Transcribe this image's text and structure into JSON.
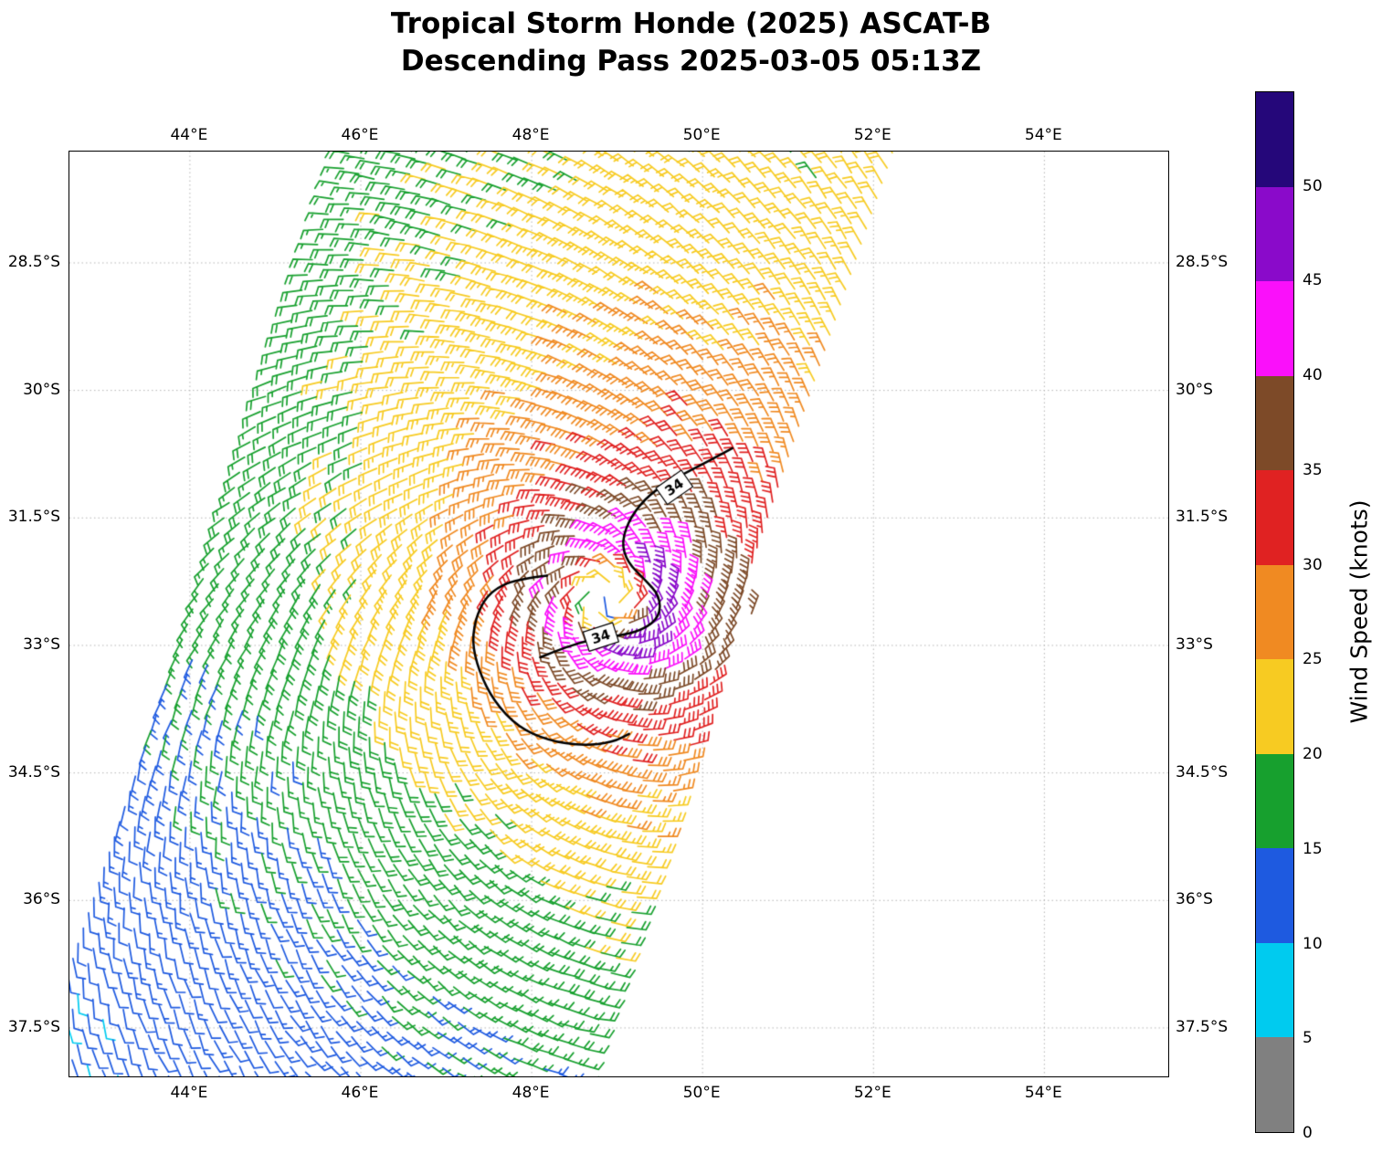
{
  "title": {
    "line1": "Tropical Storm Honde (2025) ASCAT-B",
    "line2": "Descending Pass 2025-03-05 05:13Z"
  },
  "axes": {
    "lon_ticks": {
      "values": [
        44,
        46,
        48,
        50,
        52,
        54
      ],
      "labels": [
        "44°E",
        "46°E",
        "48°E",
        "50°E",
        "52°E",
        "54°E"
      ]
    },
    "lat_ticks": {
      "values": [
        -28.5,
        -30,
        -31.5,
        -33,
        -34.5,
        -36,
        -37.5
      ],
      "labels": [
        "28.5°S",
        "30°S",
        "31.5°S",
        "33°S",
        "34.5°S",
        "36°S",
        "37.5°S"
      ]
    }
  },
  "colorbar": {
    "label": "Wind Speed (knots)",
    "ticks": [
      0,
      5,
      10,
      15,
      20,
      25,
      30,
      35,
      40,
      45,
      50
    ]
  },
  "chart_data": {
    "type": "wind_barb_map",
    "title": "Tropical Storm Honde (2025) ASCAT-B",
    "subtitle": "Descending Pass 2025-03-05 05:13Z",
    "satellite": "ASCAT-B",
    "pass_type": "Descending",
    "datetime_utc": "2025-03-05 05:13Z",
    "colorbar_label": "Wind Speed (knots)",
    "xlim": [
      42.59,
      55.45
    ],
    "ylim": [
      -38.07,
      -27.19
    ],
    "lon_gridlines": [
      44,
      46,
      48,
      50,
      52,
      54
    ],
    "lat_gridlines": [
      -28.5,
      -30,
      -31.5,
      -33,
      -34.5,
      -36,
      -37.5
    ],
    "wind_levels_knots": [
      0,
      5,
      10,
      15,
      20,
      25,
      30,
      35,
      40,
      45,
      50
    ],
    "wind_colors": [
      "#808080",
      "#00CBEF",
      "#1E5AE0",
      "#17A02E",
      "#F7CB22",
      "#F08A22",
      "#E02222",
      "#7D4A28",
      "#FA10FA",
      "#8A0ACA",
      "#25077A"
    ],
    "storm": {
      "name": "Honde",
      "year": 2025,
      "center_lon": 48.9,
      "center_lat": -32.4,
      "vmax_kt": 44,
      "rmax_deg": 0.55,
      "eye_speed_kt": 15,
      "asym_amp": 0.13,
      "inflow_deg": 22
    },
    "background_wind": [
      2.5,
      -5
    ],
    "swath": {
      "top_center_lon": 49.05,
      "track_angle_deg": 18.9,
      "half_width_deg": 3.2,
      "step_deg": 0.188
    },
    "contour_level_knots": 34,
    "contours": [
      {
        "label": "34",
        "points": [
          [
            50.35,
            -30.68
          ],
          [
            50.02,
            -30.86
          ],
          [
            49.68,
            -31.03
          ],
          [
            49.38,
            -31.22
          ],
          [
            49.16,
            -31.48
          ],
          [
            49.05,
            -31.78
          ],
          [
            49.12,
            -32.02
          ],
          [
            49.32,
            -32.22
          ],
          [
            49.5,
            -32.42
          ],
          [
            49.5,
            -32.66
          ],
          [
            49.3,
            -32.82
          ],
          [
            49.0,
            -32.89
          ],
          [
            48.7,
            -32.93
          ],
          [
            48.4,
            -33.02
          ],
          [
            48.1,
            -33.14
          ]
        ],
        "labels": [
          {
            "lon": 49.67,
            "lat": -31.14,
            "angle": -35
          },
          {
            "lon": 48.81,
            "lat": -32.9,
            "angle": -18
          }
        ]
      },
      {
        "label": "34",
        "points": [
          [
            48.18,
            -32.18
          ],
          [
            47.82,
            -32.22
          ],
          [
            47.52,
            -32.36
          ],
          [
            47.36,
            -32.62
          ],
          [
            47.3,
            -32.95
          ],
          [
            47.38,
            -33.3
          ],
          [
            47.56,
            -33.66
          ],
          [
            47.84,
            -33.96
          ],
          [
            48.2,
            -34.12
          ],
          [
            48.6,
            -34.18
          ],
          [
            48.95,
            -34.14
          ],
          [
            49.14,
            -34.04
          ]
        ],
        "labels": []
      }
    ]
  }
}
